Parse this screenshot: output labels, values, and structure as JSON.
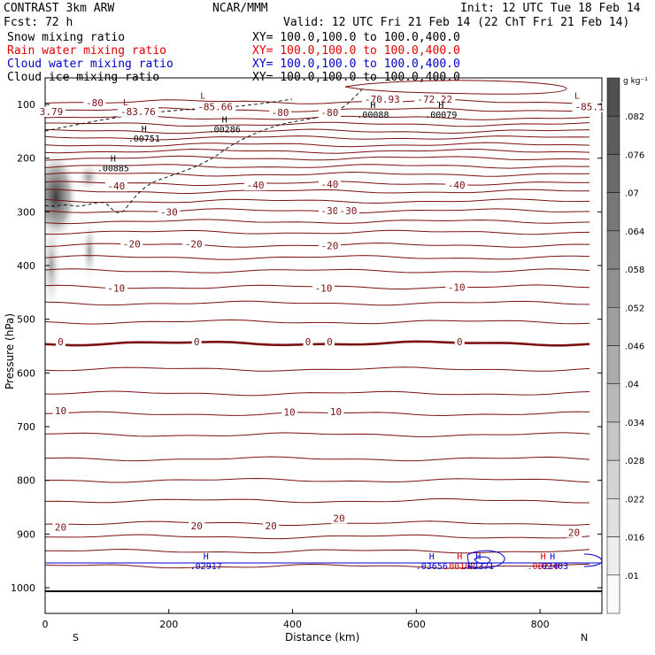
{
  "header": {
    "model": "CONTRAST  3km ARW",
    "org": "NCAR/MMM",
    "init": "Init: 12 UTC Tue 18 Feb 14",
    "fcst": "Fcst:   72 h",
    "valid": "Valid: 12 UTC Fri 21 Feb 14 (22 ChT Fri 21 Feb 14)"
  },
  "fields": [
    {
      "name": "Snow mixing ratio",
      "xy": "XY= 100.0,100.0 to 100.0,400.0",
      "color": "#000000"
    },
    {
      "name": "Rain water mixing ratio",
      "xy": "XY= 100.0,100.0 to 100.0,400.0",
      "color": "#e00000"
    },
    {
      "name": "Cloud water mixing ratio",
      "xy": "XY= 100.0,100.0 to 100.0,400.0",
      "color": "#0000cc"
    },
    {
      "name": "Cloud ice mixing ratio",
      "xy": "XY= 100.0,100.0 to 100.0,400.0",
      "color": "#000000"
    }
  ],
  "chart_data": {
    "type": "cross-section",
    "xlabel": "Distance (km)",
    "ylabel": "Pressure (hPa)",
    "xlim": [
      0,
      900
    ],
    "ylim": [
      1050,
      50
    ],
    "x_ticks": [
      0,
      200,
      400,
      600,
      800
    ],
    "y_ticks": [
      100,
      200,
      300,
      400,
      500,
      600,
      700,
      800,
      900,
      1000
    ],
    "x_end_labels": {
      "left": "S",
      "right": "N"
    },
    "colorbar": {
      "unit": "g kg⁻¹",
      "ticks": [
        ".082",
        ".076",
        ".07",
        ".064",
        ".058",
        ".052",
        ".046",
        ".04",
        ".034",
        ".028",
        ".022",
        ".016",
        ".01"
      ]
    },
    "temperature_labels": [
      {
        "text": "-80",
        "x": 80,
        "p": 97
      },
      {
        "text": "-80",
        "x": 380,
        "p": 115
      },
      {
        "text": "-80",
        "x": 460,
        "p": 115
      },
      {
        "text": "-70.93",
        "x": 545,
        "p": 90
      },
      {
        "text": "-72.22",
        "x": 630,
        "p": 90
      },
      {
        "text": "3.79",
        "x": 10,
        "p": 113
      },
      {
        "text": "-83.76",
        "x": 150,
        "p": 113
      },
      {
        "text": "-85.66",
        "x": 275,
        "p": 104
      },
      {
        "text": "-85.1",
        "x": 880,
        "p": 104
      },
      {
        "text": "-40",
        "x": 115,
        "p": 252
      },
      {
        "text": "-40",
        "x": 340,
        "p": 250
      },
      {
        "text": "-40",
        "x": 460,
        "p": 248
      },
      {
        "text": "-40",
        "x": 665,
        "p": 250
      },
      {
        "text": "-30",
        "x": 200,
        "p": 300
      },
      {
        "text": "-30",
        "x": 460,
        "p": 298
      },
      {
        "text": "-30",
        "x": 490,
        "p": 298
      },
      {
        "text": "-20",
        "x": 140,
        "p": 360
      },
      {
        "text": "-20",
        "x": 240,
        "p": 360
      },
      {
        "text": "-20",
        "x": 460,
        "p": 363
      },
      {
        "text": "-10",
        "x": 115,
        "p": 442
      },
      {
        "text": "-10",
        "x": 450,
        "p": 442
      },
      {
        "text": "-10",
        "x": 665,
        "p": 440
      },
      {
        "text": "0",
        "x": 25,
        "p": 542
      },
      {
        "text": "0",
        "x": 245,
        "p": 542
      },
      {
        "text": "0",
        "x": 425,
        "p": 542
      },
      {
        "text": "0",
        "x": 460,
        "p": 542
      },
      {
        "text": "0",
        "x": 670,
        "p": 542
      },
      {
        "text": "10",
        "x": 25,
        "p": 670
      },
      {
        "text": "10",
        "x": 395,
        "p": 673
      },
      {
        "text": "10",
        "x": 470,
        "p": 672
      },
      {
        "text": "20",
        "x": 25,
        "p": 887
      },
      {
        "text": "20",
        "x": 245,
        "p": 885
      },
      {
        "text": "20",
        "x": 365,
        "p": 885
      },
      {
        "text": "20",
        "x": 475,
        "p": 871
      },
      {
        "text": "20",
        "x": 855,
        "p": 897
      }
    ],
    "extrema": [
      {
        "kind": "L",
        "x": 130,
        "p": 102,
        "value": "",
        "color": "#7a1010"
      },
      {
        "kind": "L",
        "x": 255,
        "p": 89,
        "value": "",
        "color": "#7a1010"
      },
      {
        "kind": "L",
        "x": 860,
        "p": 89,
        "value": "",
        "color": "#7a1010"
      },
      {
        "kind": "H",
        "x": 530,
        "p": 107,
        "value": ".00088",
        "color": "#000000"
      },
      {
        "kind": "H",
        "x": 640,
        "p": 107,
        "value": ".00079",
        "color": "#000000"
      },
      {
        "kind": "H",
        "x": 160,
        "p": 151,
        "value": ".00751",
        "color": "#000000"
      },
      {
        "kind": "H",
        "x": 290,
        "p": 134,
        "value": ".00286",
        "color": "#000000"
      },
      {
        "kind": "H",
        "x": 110,
        "p": 206,
        "value": ".00885",
        "color": "#000000"
      },
      {
        "kind": "H",
        "x": 260,
        "p": 947,
        "value": ".02917",
        "color": "#0000cc"
      },
      {
        "kind": "H",
        "x": 625,
        "p": 947,
        "value": ".03656",
        "color": "#0000cc"
      },
      {
        "kind": "H",
        "x": 670,
        "p": 947,
        "value": ".00102",
        "color": "#e00000"
      },
      {
        "kind": "H",
        "x": 700,
        "p": 947,
        "value": ".02371",
        "color": "#0000cc"
      },
      {
        "kind": "H",
        "x": 805,
        "p": 947,
        "value": ".00210",
        "color": "#e00000"
      },
      {
        "kind": "H",
        "x": 820,
        "p": 947,
        "value": ".02403",
        "color": "#0000cc"
      }
    ],
    "isotherm_levels": [
      95,
      110,
      125,
      137,
      150,
      162,
      175,
      187,
      200,
      215,
      230,
      247,
      262,
      280,
      298,
      318,
      338,
      362,
      385,
      410,
      440,
      470,
      505,
      545,
      593,
      638,
      676,
      715,
      760,
      800,
      838,
      880,
      905,
      932,
      960
    ]
  }
}
